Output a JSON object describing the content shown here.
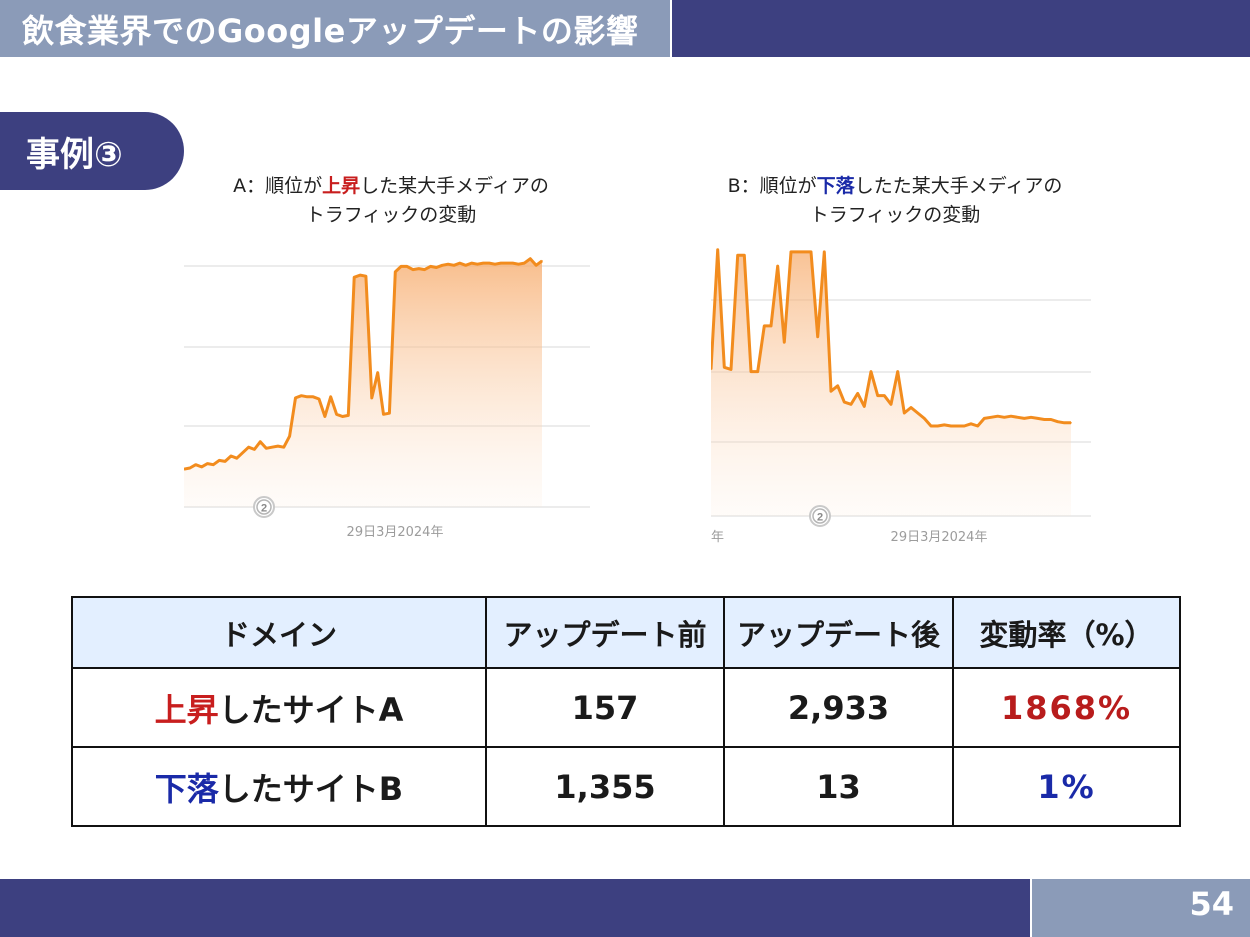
{
  "header": {
    "title": "飲食業界でのGoogleアップデートの影響"
  },
  "case_label": "事例③",
  "charts": {
    "a": {
      "caption_prefix": "A：順位が",
      "caption_highlight": "上昇",
      "caption_suffix": "した某大手メディアの",
      "caption_line2": "トラフィックの変動",
      "marker_label": "2",
      "date_label": "29日3月2024年"
    },
    "b": {
      "caption_prefix": "B：順位が",
      "caption_highlight": "下落",
      "caption_suffix": "したた某大手メディアの",
      "caption_line2": "トラフィックの変動",
      "marker_label": "2",
      "date_label": "29日3月2024年",
      "left_edge_label": "年"
    }
  },
  "chart_data": [
    {
      "type": "area",
      "series": [
        {
          "values": [
            30,
            31,
            34,
            32,
            35,
            34,
            38,
            37,
            42,
            40,
            45,
            50,
            48,
            55,
            49,
            50,
            51,
            50,
            60,
            95,
            97,
            96,
            96,
            94,
            78,
            96,
            80,
            78,
            79,
            205,
            207,
            206,
            95,
            118,
            80,
            81,
            210,
            215,
            215,
            212,
            213,
            212,
            215,
            214,
            216,
            217,
            216,
            218,
            216,
            218,
            217,
            218,
            218,
            217,
            218,
            218,
            218,
            217,
            218,
            222,
            216,
            220
          ]
        }
      ],
      "ylim": [
        0,
        250
      ],
      "grid": true,
      "color": "#f28c1e"
    },
    {
      "type": "area",
      "series": [
        {
          "values": [
            120,
            230,
            122,
            120,
            225,
            225,
            118,
            118,
            160,
            160,
            215,
            145,
            228,
            228,
            228,
            228,
            150,
            228,
            100,
            105,
            90,
            88,
            98,
            86,
            118,
            96,
            96,
            88,
            118,
            80,
            85,
            80,
            75,
            68,
            68,
            69,
            68,
            68,
            68,
            70,
            68,
            75,
            76,
            77,
            76,
            77,
            76,
            75,
            76,
            75,
            74,
            74,
            72,
            71,
            71
          ]
        }
      ],
      "ylim": [
        0,
        250
      ],
      "grid": true,
      "color": "#f28c1e"
    }
  ],
  "table": {
    "headers": [
      "ドメイン",
      "アップデート前",
      "アップデート後",
      "変動率（%）"
    ],
    "rows": [
      {
        "domain_highlight": "上昇",
        "domain_rest": "したサイトA",
        "before": "157",
        "after": "2,933",
        "rate": "1868%"
      },
      {
        "domain_highlight": "下落",
        "domain_rest": "したサイトB",
        "before": "1,355",
        "after": "13",
        "rate": "1%"
      }
    ]
  },
  "footer": {
    "page_number": "54"
  },
  "colors": {
    "navy": "#3d4080",
    "slate": "#8b9bb8",
    "up": "#c81e1e",
    "down": "#1a2aa8",
    "line": "#f28c1e"
  }
}
